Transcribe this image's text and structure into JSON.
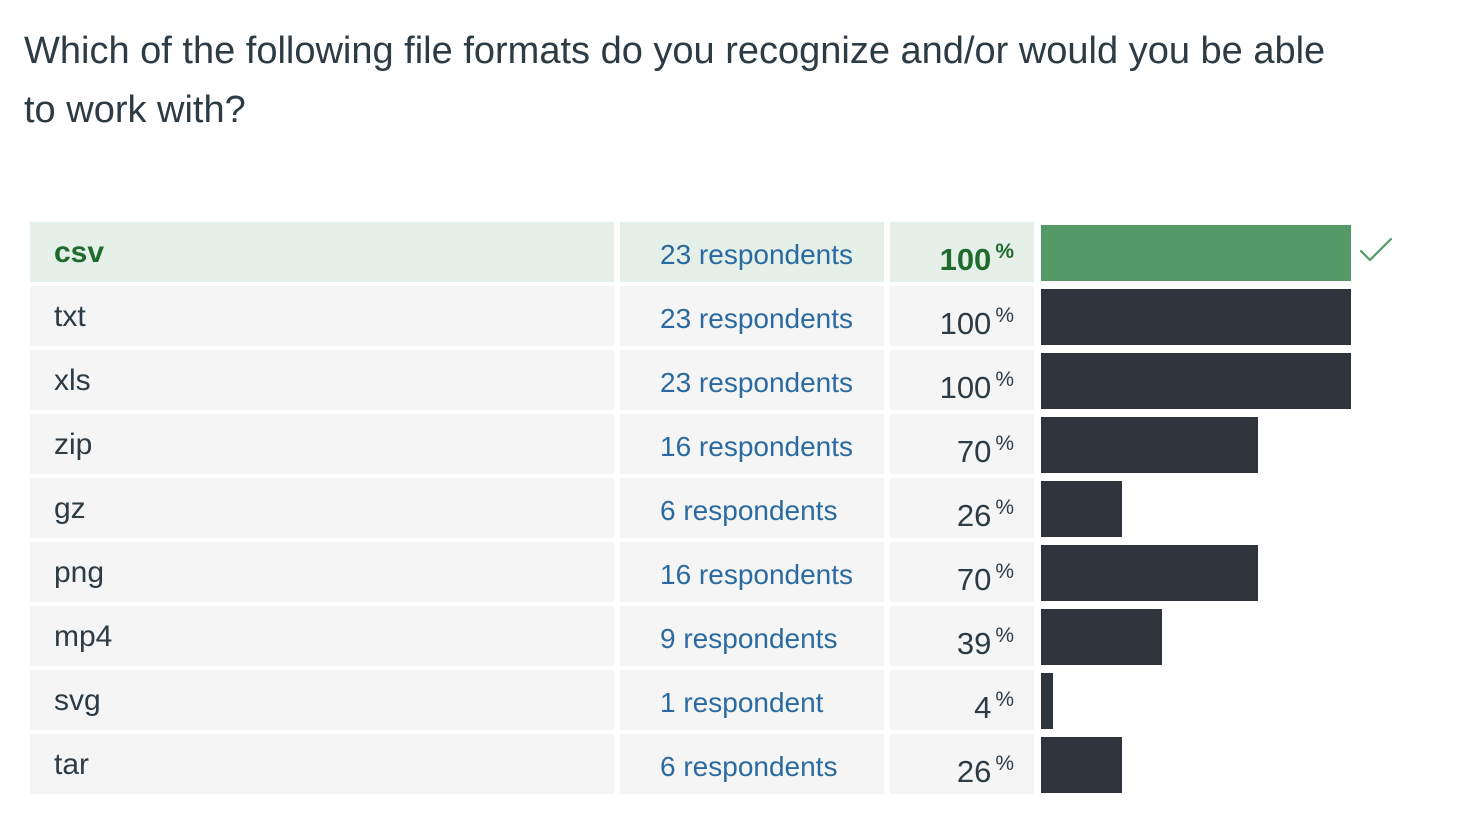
{
  "question": "Which of the following file formats do you recognize and/or would you be able to work with?",
  "colors": {
    "correct_bar": "#549a66",
    "correct_text": "#1f6b2e",
    "correct_row_bg": "#e5f0e8",
    "bar": "#2d343b",
    "row_bg": "#f5f5f5",
    "count_text": "#2b6aa1"
  },
  "answers": [
    {
      "label": "csv",
      "respondents": "23 respondents",
      "percent_value": "100",
      "percent_symbol": "%",
      "fraction": 1.0,
      "correct": true,
      "icon": "check-icon"
    },
    {
      "label": "txt",
      "respondents": "23 respondents",
      "percent_value": "100",
      "percent_symbol": "%",
      "fraction": 1.0,
      "correct": false
    },
    {
      "label": "xls",
      "respondents": "23 respondents",
      "percent_value": "100",
      "percent_symbol": "%",
      "fraction": 1.0,
      "correct": false
    },
    {
      "label": "zip",
      "respondents": "16 respondents",
      "percent_value": "70",
      "percent_symbol": "%",
      "fraction": 0.7,
      "correct": false
    },
    {
      "label": "gz",
      "respondents": "6 respondents",
      "percent_value": "26",
      "percent_symbol": "%",
      "fraction": 0.26,
      "correct": false
    },
    {
      "label": "png",
      "respondents": "16 respondents",
      "percent_value": "70",
      "percent_symbol": "%",
      "fraction": 0.7,
      "correct": false
    },
    {
      "label": "mp4",
      "respondents": "9 respondents",
      "percent_value": "39",
      "percent_symbol": "%",
      "fraction": 0.39,
      "correct": false
    },
    {
      "label": "svg",
      "respondents": "1 respondent",
      "percent_value": "4",
      "percent_symbol": "%",
      "fraction": 0.04,
      "correct": false
    },
    {
      "label": "tar",
      "respondents": "6 respondents",
      "percent_value": "26",
      "percent_symbol": "%",
      "fraction": 0.26,
      "correct": false
    }
  ]
}
